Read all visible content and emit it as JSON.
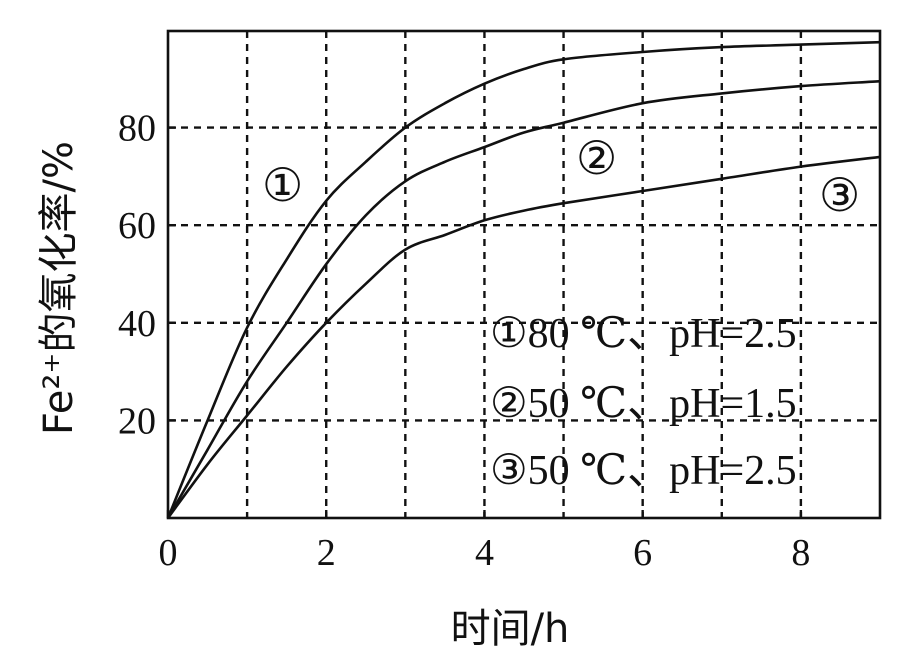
{
  "chart_data": {
    "type": "line",
    "xlabel": "时间/h",
    "ylabel": "Fe²⁺的氧化率/%",
    "xlim": [
      0,
      9
    ],
    "ylim": [
      0,
      100
    ],
    "xticks": [
      "0",
      "2",
      "4",
      "6",
      "8"
    ],
    "yticks": [
      "20",
      "40",
      "60",
      "80"
    ],
    "grid": true,
    "series": [
      {
        "name": "①",
        "x": [
          0,
          0.5,
          1,
          1.5,
          2,
          2.5,
          3,
          3.5,
          4,
          4.5,
          5,
          6,
          7,
          8,
          9
        ],
        "y": [
          0,
          20,
          39,
          53,
          65,
          73,
          80,
          85,
          89,
          92,
          94,
          95.5,
          96.5,
          97,
          97.5
        ]
      },
      {
        "name": "②",
        "x": [
          0,
          0.5,
          1,
          1.5,
          2,
          2.5,
          3,
          3.5,
          4,
          4.5,
          5,
          6,
          7,
          8,
          9
        ],
        "y": [
          0,
          14,
          28,
          40,
          52,
          62,
          69,
          73,
          76,
          79,
          81,
          85,
          87,
          88.5,
          89.5
        ]
      },
      {
        "name": "③",
        "x": [
          0,
          0.5,
          1,
          1.5,
          2,
          2.5,
          3,
          3.5,
          4,
          4.5,
          5,
          6,
          7,
          8,
          9
        ],
        "y": [
          0,
          11,
          21,
          31,
          40,
          48,
          55,
          58,
          61,
          63,
          64.5,
          67,
          69.5,
          72,
          74
        ]
      }
    ],
    "curve_labels": [
      "①",
      "②",
      "③"
    ],
    "legend": {
      "placement": "lower-right",
      "entries": [
        "①80 ℃、pH=2.5",
        "②50 ℃、pH=1.5",
        "③50 ℃、pH=2.5"
      ]
    }
  }
}
